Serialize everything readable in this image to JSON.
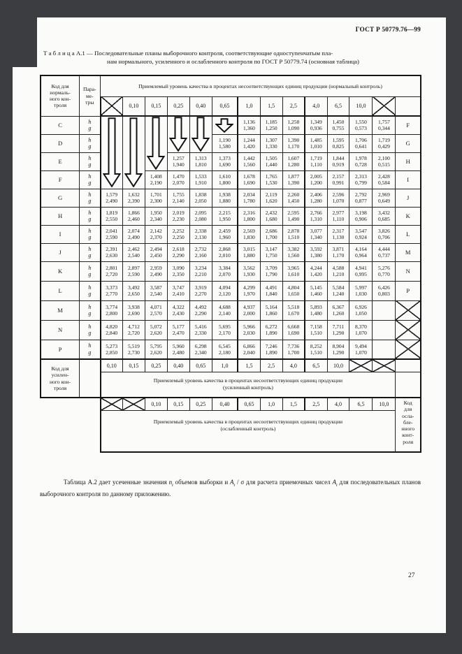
{
  "colors": {
    "frame": "#3c3d40",
    "page_bg": "#fbfbfa",
    "ink": "#151515"
  },
  "page": {
    "standard_ref": "ГОСТ Р 50779.76—99",
    "page_number": "27"
  },
  "title": {
    "line1": "Т а б л и ц а   А.1 — Последовательные планы выборочного контроля, соответствующие одноступенчатым пла-",
    "line2": "нам нормального, усиленного и ослабленного контроля по ГОСТ Р 50779.74 (основная  таблица)"
  },
  "table": {
    "code_header_lines": [
      "Код для",
      "нормаль-",
      "ного кон-",
      "троля"
    ],
    "params_header_lines": [
      "Пара-",
      "ме-",
      "тры"
    ],
    "aql_normal": "Приемлемый уровень качества в процентах несоответствующих единиц продукции (нормальный контроль)",
    "aql_tightened_line1": "Приемлемый уровень качества в процентах несоответствующих единиц продукции",
    "aql_tightened_line2": "(усиленный контроль)",
    "aql_reduced_line1": "Приемлемый уровень качества в процентах несоответствующих единиц продукции",
    "aql_reduced_line2": "(ослабленный контроль)",
    "tightened_label_lines": [
      "Код для",
      "усилен-",
      "ного кон-",
      "троля"
    ],
    "reduced_label_lines": [
      "Код",
      "для",
      "осла-",
      "бле-",
      "нного",
      "конт-",
      "роля"
    ],
    "param_symbols": [
      "h",
      "g"
    ],
    "aql_labels": [
      "0,10",
      "0,15",
      "0,25",
      "0,40",
      "0,65",
      "1,0",
      "1,5",
      "2,5",
      "4,0",
      "6,5",
      "10,0"
    ],
    "arrows": [
      {
        "col": 0,
        "row_span": 4
      },
      {
        "col": 1,
        "row_span": 4
      },
      {
        "col": 2,
        "row_span": 3
      },
      {
        "col": 3,
        "row_span": 2
      },
      {
        "col": 4,
        "row_span": 2
      },
      {
        "col": 5,
        "row_span": 1
      }
    ],
    "rows": [
      {
        "code": "C",
        "next_code": "F",
        "values": [
          null,
          null,
          null,
          null,
          null,
          null,
          [
            "1,136",
            "1,360"
          ],
          [
            "1,185",
            "1,250"
          ],
          [
            "1,258",
            "1,090"
          ],
          [
            "1,349",
            "0,936"
          ],
          [
            "1,450",
            "0,755"
          ],
          [
            "1,550",
            "0,573"
          ],
          [
            "1,757",
            "0,344"
          ]
        ]
      },
      {
        "code": "D",
        "next_code": "G",
        "values": [
          null,
          null,
          null,
          null,
          null,
          [
            "1,190",
            "1,580"
          ],
          [
            "1,244",
            "1,420"
          ],
          [
            "1,307",
            "1,330"
          ],
          [
            "1,390",
            "1,170"
          ],
          [
            "1,485",
            "1,010"
          ],
          [
            "1,595",
            "0,825"
          ],
          [
            "1,706",
            "0,641"
          ],
          [
            "1,719",
            "0,429"
          ]
        ]
      },
      {
        "code": "E",
        "next_code": "H",
        "values": [
          null,
          null,
          null,
          [
            "1,257",
            "1,940"
          ],
          [
            "1,313",
            "1,810"
          ],
          [
            "1,373",
            "1,690"
          ],
          [
            "1,442",
            "1,560"
          ],
          [
            "1,505",
            "1,440"
          ],
          [
            "1,607",
            "1,280"
          ],
          [
            "1,719",
            "1,110"
          ],
          [
            "1,844",
            "0,919"
          ],
          [
            "1,978",
            "0,728"
          ],
          [
            "2,100",
            "0,515"
          ]
        ]
      },
      {
        "code": "F",
        "next_code": "I",
        "values": [
          null,
          null,
          [
            "1,408",
            "2,190"
          ],
          [
            "1,470",
            "2,070"
          ],
          [
            "1,533",
            "1,910"
          ],
          [
            "1,610",
            "1,800"
          ],
          [
            "1,678",
            "1,690"
          ],
          [
            "1,765",
            "1,530"
          ],
          [
            "1,877",
            "1,390"
          ],
          [
            "2,005",
            "1,200"
          ],
          [
            "2,157",
            "0,991"
          ],
          [
            "2,313",
            "0,799"
          ],
          [
            "2,428",
            "0,584"
          ]
        ]
      },
      {
        "code": "G",
        "next_code": "J",
        "values": [
          [
            "1,579",
            "2,490"
          ],
          [
            "1,632",
            "2,390"
          ],
          [
            "1,701",
            "2,300"
          ],
          [
            "1,755",
            "2,140"
          ],
          [
            "1,838",
            "2,050"
          ],
          [
            "1,938",
            "1,880"
          ],
          [
            "2,034",
            "1,780"
          ],
          [
            "2,119",
            "1,620"
          ],
          [
            "2,260",
            "1,450"
          ],
          [
            "2,406",
            "1,280"
          ],
          [
            "2,596",
            "1,070"
          ],
          [
            "2,792",
            "0,877"
          ],
          [
            "2,969",
            "0,649"
          ]
        ]
      },
      {
        "code": "H",
        "next_code": "K",
        "values": [
          [
            "1,819",
            "2,550"
          ],
          [
            "1,866",
            "2,460"
          ],
          [
            "1,950",
            "2,340"
          ],
          [
            "2,019",
            "2,230"
          ],
          [
            "2,095",
            "2,080"
          ],
          [
            "2,215",
            "1,950"
          ],
          [
            "2,316",
            "1,800"
          ],
          [
            "2,432",
            "1,680"
          ],
          [
            "2,595",
            "1,490"
          ],
          [
            "2,766",
            "1,310"
          ],
          [
            "2,977",
            "1,110"
          ],
          [
            "3,198",
            "0,906"
          ],
          [
            "3,432",
            "0,685"
          ]
        ]
      },
      {
        "code": "I",
        "next_code": "L",
        "values": [
          [
            "2,041",
            "2,590"
          ],
          [
            "2,074",
            "2,490"
          ],
          [
            "2,142",
            "2,370"
          ],
          [
            "2,252",
            "2,250"
          ],
          [
            "2,338",
            "2,130"
          ],
          [
            "2,459",
            "1,960"
          ],
          [
            "2,569",
            "1,830"
          ],
          [
            "2,686",
            "1,700"
          ],
          [
            "2,878",
            "1,510"
          ],
          [
            "3,077",
            "1,340"
          ],
          [
            "2,317",
            "1,130"
          ],
          [
            "3,547",
            "0,924"
          ],
          [
            "3,826",
            "0,706"
          ]
        ]
      },
      {
        "code": "J",
        "next_code": "M",
        "values": [
          [
            "2,391",
            "2,630"
          ],
          [
            "2,462",
            "2,540"
          ],
          [
            "2,494",
            "2,450"
          ],
          [
            "2,618",
            "2,290"
          ],
          [
            "2,732",
            "2,160"
          ],
          [
            "2,868",
            "2,010"
          ],
          [
            "3,015",
            "1,880"
          ],
          [
            "3,147",
            "1,750"
          ],
          [
            "3,382",
            "1,560"
          ],
          [
            "3,592",
            "1,380"
          ],
          [
            "3,871",
            "1,170"
          ],
          [
            "4,164",
            "0,964"
          ],
          [
            "4,444",
            "0,737"
          ]
        ]
      },
      {
        "code": "K",
        "next_code": "N",
        "values": [
          [
            "2,801",
            "2,720"
          ],
          [
            "2,897",
            "2,590"
          ],
          [
            "2,959",
            "2,490"
          ],
          [
            "3,090",
            "2,350"
          ],
          [
            "3,234",
            "2,210"
          ],
          [
            "3,384",
            "2,070"
          ],
          [
            "3,562",
            "1,930"
          ],
          [
            "3,709",
            "1,790"
          ],
          [
            "3,965",
            "1,610"
          ],
          [
            "4,244",
            "1,420"
          ],
          [
            "4,588",
            "1,210"
          ],
          [
            "4,941",
            "0,995"
          ],
          [
            "5,276",
            "0,770"
          ]
        ]
      },
      {
        "code": "L",
        "next_code": "P",
        "values": [
          [
            "3,373",
            "2,770"
          ],
          [
            "3,492",
            "2,650"
          ],
          [
            "3,587",
            "2,540"
          ],
          [
            "3,747",
            "2,410"
          ],
          [
            "3,919",
            "2,270"
          ],
          [
            "4,094",
            "2,120"
          ],
          [
            "4,299",
            "1,970"
          ],
          [
            "4,491",
            "1,840"
          ],
          [
            "4,804",
            "1,650"
          ],
          [
            "5,145",
            "1,460"
          ],
          [
            "5,584",
            "1,240"
          ],
          [
            "5,997",
            "1,030"
          ],
          [
            "6,426",
            "0,803"
          ]
        ]
      },
      {
        "code": "M",
        "next_code": null,
        "values": [
          [
            "3,774",
            "2,800"
          ],
          [
            "3,938",
            "2,690"
          ],
          [
            "4,071",
            "2,570"
          ],
          [
            "4,322",
            "2,430"
          ],
          [
            "4,492",
            "2,290"
          ],
          [
            "4,688",
            "2,140"
          ],
          [
            "4,937",
            "2,000"
          ],
          [
            "5,164",
            "1,860"
          ],
          [
            "5,518",
            "1,670"
          ],
          [
            "5,893",
            "1,480"
          ],
          [
            "6,367",
            "1,260"
          ],
          [
            "6,926",
            "1,050"
          ],
          null
        ]
      },
      {
        "code": "N",
        "next_code": null,
        "values": [
          [
            "4,820",
            "2,840"
          ],
          [
            "4,712",
            "2,720"
          ],
          [
            "5,072",
            "2,620"
          ],
          [
            "5,177",
            "2,470"
          ],
          [
            "5,416",
            "2,330"
          ],
          [
            "5,695",
            "2,170"
          ],
          [
            "5,966",
            "2,030"
          ],
          [
            "6,272",
            "1,890"
          ],
          [
            "6,668",
            "1,690"
          ],
          [
            "7,158",
            "1,510"
          ],
          [
            "7,711",
            "1,290"
          ],
          [
            "8,370",
            "1,070"
          ],
          null
        ]
      },
      {
        "code": "P",
        "next_code": null,
        "values": [
          [
            "5,273",
            "2,850"
          ],
          [
            "5,519",
            "2,730"
          ],
          [
            "5,795",
            "2,620"
          ],
          [
            "5,960",
            "2,480"
          ],
          [
            "6,298",
            "2,340"
          ],
          [
            "6,545",
            "2,180"
          ],
          [
            "6,866",
            "2,040"
          ],
          [
            "7,246",
            "1,890"
          ],
          [
            "7,736",
            "1,700"
          ],
          [
            "8,252",
            "1,510"
          ],
          [
            "8,904",
            "1,290"
          ],
          [
            "9,494",
            "1,070"
          ],
          null
        ]
      }
    ]
  },
  "note_parts": [
    {
      "t": "Таблица А.2 дает усеченные значения "
    },
    {
      "v": "n",
      "s": "t"
    },
    {
      "t": " объемов выборки и "
    },
    {
      "v": "A",
      "s": "t"
    },
    {
      "t": " / σ  для расчета приемочных чисел "
    },
    {
      "v": "A",
      "s": "t"
    },
    {
      "t": " для последовательных планов выборочного контроля по данному приложению."
    }
  ]
}
